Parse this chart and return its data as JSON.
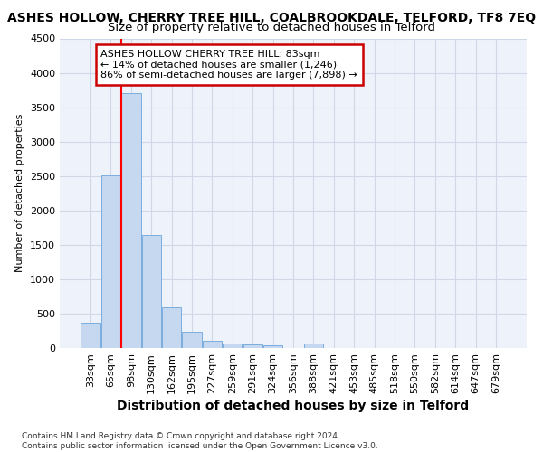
{
  "title": "ASHES HOLLOW, CHERRY TREE HILL, COALBROOKDALE, TELFORD, TF8 7EQ",
  "subtitle": "Size of property relative to detached houses in Telford",
  "xlabel": "Distribution of detached houses by size in Telford",
  "ylabel": "Number of detached properties",
  "categories": [
    "33sqm",
    "65sqm",
    "98sqm",
    "130sqm",
    "162sqm",
    "195sqm",
    "227sqm",
    "259sqm",
    "291sqm",
    "324sqm",
    "356sqm",
    "388sqm",
    "421sqm",
    "453sqm",
    "485sqm",
    "518sqm",
    "550sqm",
    "582sqm",
    "614sqm",
    "647sqm",
    "679sqm"
  ],
  "values": [
    370,
    2510,
    3710,
    1640,
    590,
    230,
    110,
    70,
    50,
    35,
    0,
    60,
    0,
    0,
    0,
    0,
    0,
    0,
    0,
    0,
    0
  ],
  "bar_color": "#c5d8f0",
  "bar_edge_color": "#7aade0",
  "red_line_x": 1.5,
  "annotation_text": "ASHES HOLLOW CHERRY TREE HILL: 83sqm\n← 14% of detached houses are smaller (1,246)\n86% of semi-detached houses are larger (7,898) →",
  "ylim": [
    0,
    4500
  ],
  "yticks": [
    0,
    500,
    1000,
    1500,
    2000,
    2500,
    3000,
    3500,
    4000,
    4500
  ],
  "grid_color": "#d0d8e8",
  "background_color": "#edf2fb",
  "footer": "Contains HM Land Registry data © Crown copyright and database right 2024.\nContains public sector information licensed under the Open Government Licence v3.0.",
  "title_fontsize": 10,
  "subtitle_fontsize": 9.5,
  "xlabel_fontsize": 10,
  "ylabel_fontsize": 8,
  "tick_fontsize": 8,
  "footer_fontsize": 6.5,
  "annotation_box_color": "#ffffff",
  "annotation_box_edge": "#cc0000",
  "annotation_fontsize": 8
}
